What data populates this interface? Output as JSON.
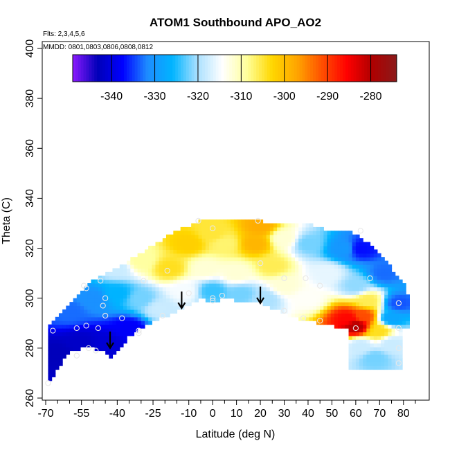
{
  "chart_data": {
    "type": "heatmap",
    "title": "ATOM1 Southbound APO_AO2",
    "flights_label": "Flts: 2,3,4,5,6",
    "mmdd_label": "MMDD: 0801,0803,0806,0808,0812",
    "xlabel": "Latitude (deg N)",
    "ylabel": "Theta (C)",
    "xlim": [
      -70,
      85
    ],
    "ylim": [
      260,
      400
    ],
    "x_ticks": [
      {
        "value": -70,
        "label": "-70"
      },
      {
        "value": -55,
        "label": "-55"
      },
      {
        "value": -40,
        "label": "-40"
      },
      {
        "value": -25,
        "label": "-25"
      },
      {
        "value": -10,
        "label": "-10"
      },
      {
        "value": 0,
        "label": "0"
      },
      {
        "value": 10,
        "label": "10"
      },
      {
        "value": 20,
        "label": "20"
      },
      {
        "value": 30,
        "label": "30"
      },
      {
        "value": 40,
        "label": "40"
      },
      {
        "value": 50,
        "label": "50"
      },
      {
        "value": 60,
        "label": "60"
      },
      {
        "value": 70,
        "label": "70"
      },
      {
        "value": 80,
        "label": "80"
      }
    ],
    "x_minor_ticks": [
      -65,
      -60,
      -50,
      -45,
      -35,
      -30,
      -20,
      -15,
      -5,
      5,
      15,
      25,
      35,
      45,
      55,
      65,
      75,
      85
    ],
    "y_ticks": [
      {
        "value": 260,
        "label": "260"
      },
      {
        "value": 280,
        "label": "280"
      },
      {
        "value": 300,
        "label": "300"
      },
      {
        "value": 320,
        "label": "320"
      },
      {
        "value": 340,
        "label": "340"
      },
      {
        "value": 360,
        "label": "360"
      },
      {
        "value": 380,
        "label": "380"
      },
      {
        "value": 400,
        "label": "400"
      }
    ],
    "colorbar": {
      "range": [
        -349,
        -274
      ],
      "ticks": [
        {
          "value": -340,
          "label": "-340"
        },
        {
          "value": -330,
          "label": "-330"
        },
        {
          "value": -320,
          "label": "-320"
        },
        {
          "value": -310,
          "label": "-310"
        },
        {
          "value": -300,
          "label": "-300"
        },
        {
          "value": -290,
          "label": "-290"
        },
        {
          "value": -280,
          "label": "-280"
        }
      ],
      "colors": [
        "#8c1aff",
        "#0000b8",
        "#0000ff",
        "#1e8cff",
        "#00b4ff",
        "#aae0ff",
        "#ffffff",
        "#ffff9a",
        "#ffd700",
        "#ffa500",
        "#ff5000",
        "#ff0000",
        "#b00000",
        "#8b1a1a"
      ]
    },
    "region": {
      "lower_boundary": [
        [
          -69,
          265
        ],
        [
          -65,
          272
        ],
        [
          -60,
          278
        ],
        [
          -55,
          280
        ],
        [
          -50,
          280
        ],
        [
          -45,
          278
        ],
        [
          -42,
          276
        ],
        [
          -35,
          285
        ],
        [
          -25,
          291
        ],
        [
          -18,
          293
        ],
        [
          -10,
          297
        ],
        [
          -5,
          300
        ],
        [
          0,
          298
        ],
        [
          5,
          300
        ],
        [
          10,
          299
        ],
        [
          15,
          299
        ],
        [
          20,
          298
        ],
        [
          25,
          296
        ],
        [
          30,
          294
        ],
        [
          35,
          292
        ],
        [
          40,
          291
        ],
        [
          45,
          290
        ],
        [
          50,
          289
        ],
        [
          55,
          288
        ],
        [
          60,
          288
        ],
        [
          65,
          288
        ],
        [
          70,
          287
        ],
        [
          75,
          287
        ],
        [
          80,
          288
        ]
      ],
      "upper_boundary": [
        [
          -69,
          288
        ],
        [
          -65,
          293
        ],
        [
          -60,
          298
        ],
        [
          -55,
          303
        ],
        [
          -50,
          307
        ],
        [
          -45,
          310
        ],
        [
          -40,
          312
        ],
        [
          -35,
          315
        ],
        [
          -30,
          318
        ],
        [
          -25,
          321
        ],
        [
          -20,
          324
        ],
        [
          -15,
          327
        ],
        [
          -10,
          329
        ],
        [
          -5,
          331
        ],
        [
          0,
          331
        ],
        [
          10,
          331
        ],
        [
          20,
          331
        ],
        [
          25,
          330
        ],
        [
          30,
          330
        ],
        [
          40,
          330
        ],
        [
          45,
          328
        ],
        [
          50,
          327
        ],
        [
          55,
          327
        ],
        [
          60,
          326
        ],
        [
          65,
          322
        ],
        [
          70,
          317
        ],
        [
          75,
          312
        ],
        [
          80,
          306
        ],
        [
          82,
          300
        ]
      ],
      "extra_patch": [
        [
          57,
          288
        ],
        [
          80,
          288
        ],
        [
          80,
          272
        ],
        [
          57,
          272
        ]
      ]
    },
    "field_points": [
      {
        "lat": -65,
        "theta": 278,
        "value": -343
      },
      {
        "lat": -55,
        "theta": 282,
        "value": -342
      },
      {
        "lat": -45,
        "theta": 282,
        "value": -341
      },
      {
        "lat": -35,
        "theta": 288,
        "value": -338
      },
      {
        "lat": -60,
        "theta": 295,
        "value": -333
      },
      {
        "lat": -50,
        "theta": 300,
        "value": -331
      },
      {
        "lat": -40,
        "theta": 302,
        "value": -326
      },
      {
        "lat": -30,
        "theta": 300,
        "value": -322
      },
      {
        "lat": -22,
        "theta": 296,
        "value": -318
      },
      {
        "lat": -40,
        "theta": 312,
        "value": -318
      },
      {
        "lat": -30,
        "theta": 315,
        "value": -309
      },
      {
        "lat": -18,
        "theta": 312,
        "value": -304
      },
      {
        "lat": -10,
        "theta": 322,
        "value": -302
      },
      {
        "lat": -12,
        "theta": 303,
        "value": -315
      },
      {
        "lat": -3,
        "theta": 312,
        "value": -312
      },
      {
        "lat": 0,
        "theta": 326,
        "value": -305
      },
      {
        "lat": 0,
        "theta": 303,
        "value": -324
      },
      {
        "lat": 5,
        "theta": 322,
        "value": -307
      },
      {
        "lat": 10,
        "theta": 310,
        "value": -312
      },
      {
        "lat": 12,
        "theta": 302,
        "value": -322
      },
      {
        "lat": 18,
        "theta": 322,
        "value": -299
      },
      {
        "lat": 20,
        "theta": 329,
        "value": -298
      },
      {
        "lat": 25,
        "theta": 313,
        "value": -306
      },
      {
        "lat": 22,
        "theta": 300,
        "value": -320
      },
      {
        "lat": 30,
        "theta": 305,
        "value": -312
      },
      {
        "lat": 30,
        "theta": 324,
        "value": -312
      },
      {
        "lat": 40,
        "theta": 322,
        "value": -322
      },
      {
        "lat": 40,
        "theta": 300,
        "value": -314
      },
      {
        "lat": 48,
        "theta": 310,
        "value": -316
      },
      {
        "lat": 55,
        "theta": 320,
        "value": -330
      },
      {
        "lat": 62,
        "theta": 320,
        "value": -337
      },
      {
        "lat": 60,
        "theta": 305,
        "value": -321
      },
      {
        "lat": 72,
        "theta": 310,
        "value": -333
      },
      {
        "lat": 57,
        "theta": 292,
        "value": -286
      },
      {
        "lat": 60,
        "theta": 289,
        "value": -280
      },
      {
        "lat": 63,
        "theta": 293,
        "value": -291
      },
      {
        "lat": 65,
        "theta": 299,
        "value": -306
      },
      {
        "lat": 70,
        "theta": 287,
        "value": -304
      },
      {
        "lat": 75,
        "theta": 292,
        "value": -328
      },
      {
        "lat": 78,
        "theta": 298,
        "value": -334
      },
      {
        "lat": 62,
        "theta": 281,
        "value": -318
      },
      {
        "lat": 75,
        "theta": 282,
        "value": -318
      },
      {
        "lat": 68,
        "theta": 276,
        "value": -322
      }
    ],
    "sample_points": [
      {
        "lat": -67,
        "theta": 287
      },
      {
        "lat": -69,
        "theta": 266
      },
      {
        "lat": -57,
        "theta": 277
      },
      {
        "lat": -57,
        "theta": 288
      },
      {
        "lat": -53,
        "theta": 289
      },
      {
        "lat": -52,
        "theta": 280
      },
      {
        "lat": -49,
        "theta": 279
      },
      {
        "lat": -48,
        "theta": 288
      },
      {
        "lat": -45,
        "theta": 293
      },
      {
        "lat": -46,
        "theta": 297
      },
      {
        "lat": -45,
        "theta": 300
      },
      {
        "lat": -47,
        "theta": 307
      },
      {
        "lat": -54,
        "theta": 305
      },
      {
        "lat": -53,
        "theta": 304
      },
      {
        "lat": -38,
        "theta": 292
      },
      {
        "lat": -31,
        "theta": 287
      },
      {
        "lat": -31,
        "theta": 286
      },
      {
        "lat": -29,
        "theta": 307
      },
      {
        "lat": -21,
        "theta": 293
      },
      {
        "lat": -19,
        "theta": 311
      },
      {
        "lat": -10,
        "theta": 302
      },
      {
        "lat": -6,
        "theta": 331
      },
      {
        "lat": 0,
        "theta": 328
      },
      {
        "lat": 0,
        "theta": 300
      },
      {
        "lat": 0,
        "theta": 299
      },
      {
        "lat": 4,
        "theta": 301
      },
      {
        "lat": 19,
        "theta": 331
      },
      {
        "lat": 20,
        "theta": 314
      },
      {
        "lat": 30,
        "theta": 308
      },
      {
        "lat": 30,
        "theta": 295
      },
      {
        "lat": 38,
        "theta": 292
      },
      {
        "lat": 39,
        "theta": 308
      },
      {
        "lat": 45,
        "theta": 305
      },
      {
        "lat": 45,
        "theta": 291
      },
      {
        "lat": 62,
        "theta": 327
      },
      {
        "lat": 66,
        "theta": 308
      },
      {
        "lat": 60,
        "theta": 288
      },
      {
        "lat": 78,
        "theta": 298
      },
      {
        "lat": 78,
        "theta": 288
      },
      {
        "lat": 78,
        "theta": 280
      },
      {
        "lat": 78,
        "theta": 274
      }
    ],
    "arrows": [
      {
        "lat": -43,
        "theta": 280
      },
      {
        "lat": -13,
        "theta": 296
      },
      {
        "lat": 20,
        "theta": 298
      }
    ]
  }
}
